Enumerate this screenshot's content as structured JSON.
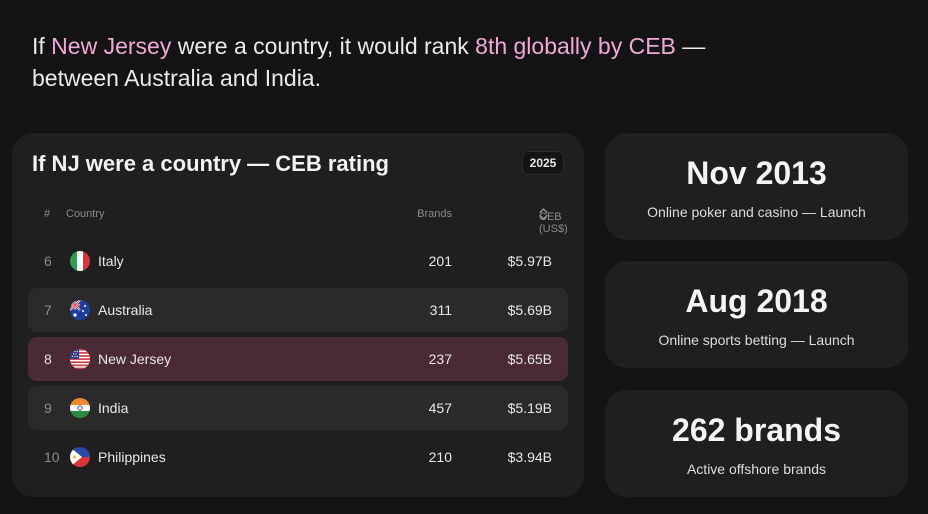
{
  "headline": {
    "prefix": "If ",
    "state": "New Jersey",
    "middle": " were a country, it would rank ",
    "rank_phrase": "8th globally by CEB",
    "suffix": " — between Australia and India."
  },
  "table": {
    "title": "If NJ were a country — CEB rating",
    "year": "2025",
    "headers": {
      "num": "#",
      "country": "Country",
      "brands": "Brands",
      "ceb": "CEB (US$)"
    },
    "rows": [
      {
        "rank": "6",
        "country": "Italy",
        "flag": "italy-flag-icon",
        "brands": "201",
        "ceb": "$5.97B"
      },
      {
        "rank": "7",
        "country": "Australia",
        "flag": "australia-flag-icon",
        "brands": "311",
        "ceb": "$5.69B"
      },
      {
        "rank": "8",
        "country": "New Jersey",
        "flag": "us-flag-icon",
        "brands": "237",
        "ceb": "$5.65B"
      },
      {
        "rank": "9",
        "country": "India",
        "flag": "india-flag-icon",
        "brands": "457",
        "ceb": "$5.19B"
      },
      {
        "rank": "10",
        "country": "Philippines",
        "flag": "philippines-flag-icon",
        "brands": "210",
        "ceb": "$3.94B"
      }
    ]
  },
  "stats": [
    {
      "value": "Nov 2013",
      "label": "Online poker and casino — Launch"
    },
    {
      "value": "Aug 2018",
      "label": "Online sports betting — Launch"
    },
    {
      "value": "262 brands",
      "label": "Active offshore brands"
    }
  ],
  "colors": {
    "background": "#141414",
    "card": "#1f1f1f",
    "row_alt": "#2a2a2a",
    "row_highlight": "#4a2a35",
    "accent_pink": "#f0a9d6"
  }
}
